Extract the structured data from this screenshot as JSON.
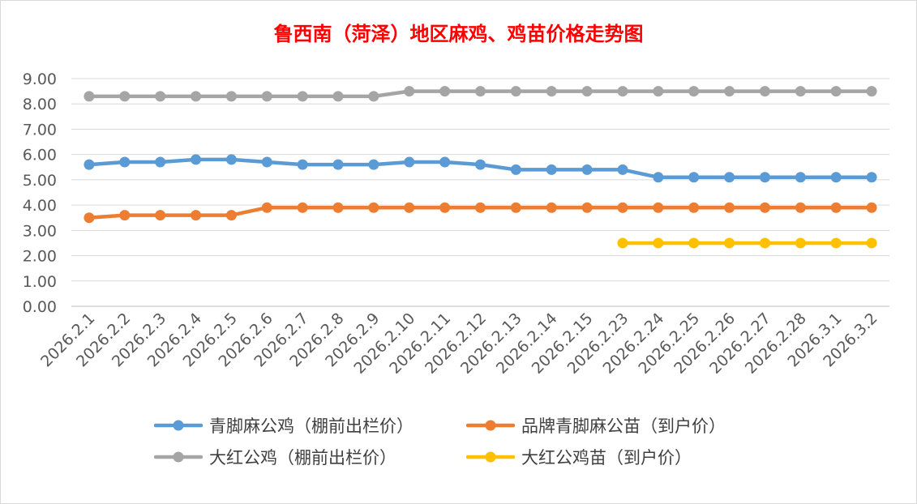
{
  "chart_data": {
    "type": "line",
    "title": "鲁西南（菏泽）地区麻鸡、鸡苗价格走势图",
    "categories": [
      "2026.2.1",
      "2026.2.2",
      "2026.2.3",
      "2026.2.4",
      "2026.2.5",
      "2026.2.6",
      "2026.2.7",
      "2026.2.8",
      "2026.2.9",
      "2026.2.10",
      "2026.2.11",
      "2026.2.12",
      "2026.2.13",
      "2026.2.14",
      "2026.2.15",
      "2026.2.23",
      "2026.2.24",
      "2026.2.25",
      "2026.2.26",
      "2026.2.27",
      "2026.2.28",
      "2026.3.1",
      "2026.3.2"
    ],
    "ylim": [
      0,
      9
    ],
    "yticks": [
      "0.00",
      "1.00",
      "2.00",
      "3.00",
      "4.00",
      "5.00",
      "6.00",
      "7.00",
      "8.00",
      "9.00"
    ],
    "grid": true,
    "legend_position": "bottom",
    "series": [
      {
        "name": "青脚麻公鸡（棚前出栏价）",
        "color": "#5b9bd5",
        "values": [
          5.6,
          5.7,
          5.7,
          5.8,
          5.8,
          5.7,
          5.6,
          5.6,
          5.6,
          5.7,
          5.7,
          5.6,
          5.4,
          5.4,
          5.4,
          5.4,
          5.1,
          5.1,
          5.1,
          5.1,
          5.1,
          5.1,
          5.1
        ]
      },
      {
        "name": "品牌青脚麻公苗（到户价）",
        "color": "#ed7d31",
        "values": [
          3.5,
          3.6,
          3.6,
          3.6,
          3.6,
          3.9,
          3.9,
          3.9,
          3.9,
          3.9,
          3.9,
          3.9,
          3.9,
          3.9,
          3.9,
          3.9,
          3.9,
          3.9,
          3.9,
          3.9,
          3.9,
          3.9,
          3.9
        ]
      },
      {
        "name": "大红公鸡（棚前出栏价）",
        "color": "#a5a5a5",
        "values": [
          8.3,
          8.3,
          8.3,
          8.3,
          8.3,
          8.3,
          8.3,
          8.3,
          8.3,
          8.5,
          8.5,
          8.5,
          8.5,
          8.5,
          8.5,
          8.5,
          8.5,
          8.5,
          8.5,
          8.5,
          8.5,
          8.5,
          8.5
        ]
      },
      {
        "name": "大红公鸡苗（到户价）",
        "color": "#ffc000",
        "values": [
          null,
          null,
          null,
          null,
          null,
          null,
          null,
          null,
          null,
          null,
          null,
          null,
          null,
          null,
          null,
          2.5,
          2.5,
          2.5,
          2.5,
          2.5,
          2.5,
          2.5,
          2.5
        ]
      }
    ]
  }
}
